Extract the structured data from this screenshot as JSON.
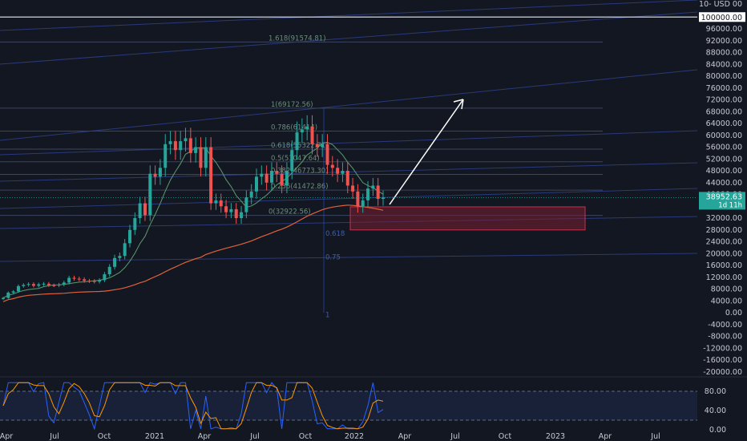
{
  "header": {
    "currency_label": "10- USD 00"
  },
  "chart_data": {
    "type": "candlestick",
    "x_ticks": [
      "Apr",
      "Jul",
      "Oct",
      "2021",
      "Apr",
      "Jul",
      "Oct",
      "2022",
      "Apr",
      "Jul",
      "Oct",
      "2023",
      "Apr",
      "Jul"
    ],
    "y_ticks": [
      "96000.00",
      "92000.00",
      "88000.00",
      "84000.00",
      "80000.00",
      "76000.00",
      "72000.00",
      "68000.00",
      "64000.00",
      "60000.00",
      "56000.00",
      "52000.00",
      "48000.00",
      "44000.00",
      "40000.00",
      "36000.00",
      "32000.00",
      "28000.00",
      "24000.00",
      "20000.00",
      "16000.00",
      "12000.00",
      "8000.00",
      "4000.00",
      "0.00",
      "-4000.00",
      "-8000.00",
      "-12000.00",
      "-16000.00",
      "-20000.00"
    ],
    "y_ticks_values": [
      96000,
      92000,
      88000,
      84000,
      80000,
      76000,
      72000,
      68000,
      64000,
      60000,
      56000,
      52000,
      48000,
      44000,
      40000,
      36000,
      32000,
      28000,
      24000,
      20000,
      16000,
      12000,
      8000,
      4000,
      0,
      -4000,
      -8000,
      -12000,
      -16000,
      -20000
    ],
    "highlight_level": {
      "label": "100000.00",
      "value": 100000
    },
    "current_price": {
      "label": "38952.63",
      "countdown": "1d 11h",
      "value": 38952.63
    },
    "fib_levels": [
      {
        "label": "1.618(91574.81)",
        "value": 91574.81
      },
      {
        "label": "1(69172.56)",
        "value": 69172.56
      },
      {
        "label": "0.786(61414)",
        "value": 61414
      },
      {
        "label": "0.618(55322.71)",
        "value": 55322.71
      },
      {
        "label": "0.5(51047.64)",
        "value": 51047.64
      },
      {
        "label": "0.382(46773.30)",
        "value": 46773.3
      },
      {
        "label": "0.236(41472.86)",
        "value": 41472.86
      },
      {
        "label": "0(32922.56)",
        "value": 32922.56
      }
    ],
    "fib_sub_labels": [
      {
        "label": "0.618",
        "value": 26000
      },
      {
        "label": "0.75",
        "value": 18000
      },
      {
        "label": "1",
        "value": -1500
      }
    ],
    "closes": [
      5000,
      6800,
      7200,
      9000,
      9400,
      9700,
      9100,
      9600,
      9800,
      9300,
      9200,
      9500,
      10200,
      11800,
      11500,
      11300,
      10800,
      10700,
      10500,
      11000,
      13000,
      15500,
      18500,
      19200,
      23500,
      28000,
      32000,
      37000,
      33000,
      47000,
      46000,
      49000,
      57000,
      58000,
      55000,
      58000,
      59000,
      54000,
      56000,
      49000,
      56000,
      37000,
      38000,
      36000,
      34000,
      35000,
      32000,
      34000,
      39000,
      41000,
      46000,
      47000,
      44000,
      48000,
      47000,
      43000,
      48000,
      55000,
      61000,
      62000,
      63000,
      57000,
      56000,
      57000,
      50000,
      49000,
      47000,
      48000,
      43000,
      41000,
      36000,
      38000,
      42000,
      43000,
      38500,
      38952
    ],
    "oscillator": {
      "ticks": [
        "80.00",
        "40.00",
        "0.00"
      ],
      "tick_values": [
        80,
        40,
        0
      ]
    }
  }
}
